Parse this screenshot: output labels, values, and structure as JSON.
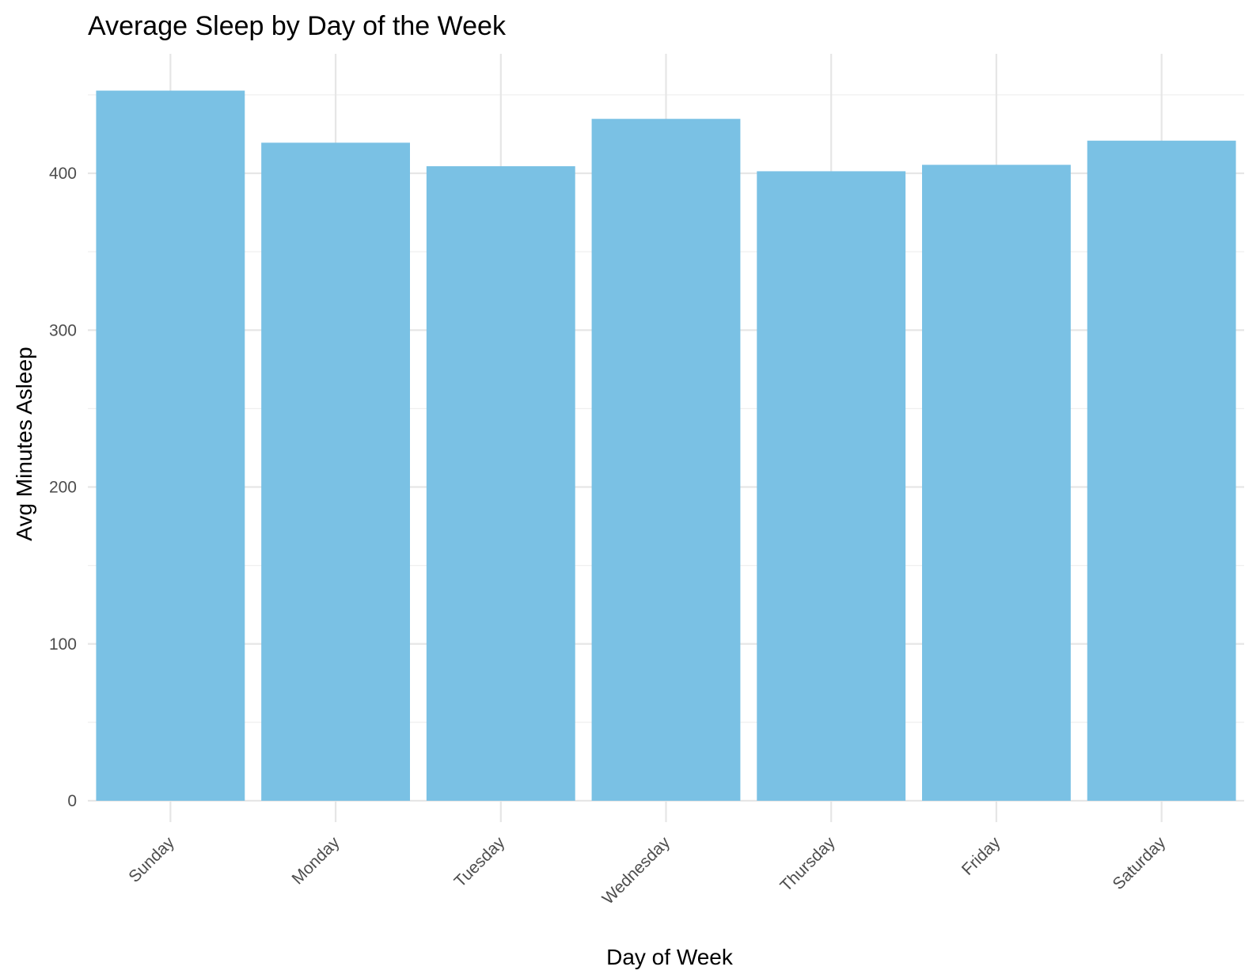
{
  "chart_data": {
    "type": "bar",
    "title": "Average Sleep by Day of the Week",
    "xlabel": "Day of Week",
    "ylabel": "Avg Minutes Asleep",
    "categories": [
      "Sunday",
      "Monday",
      "Tuesday",
      "Wednesday",
      "Thursday",
      "Friday",
      "Saturday"
    ],
    "values": [
      452.7,
      419.5,
      404.5,
      434.7,
      401.3,
      405.4,
      420.8
    ],
    "ylim": [
      0,
      450
    ],
    "yticks": [
      0,
      100,
      200,
      300,
      400
    ],
    "ytick_labels": [
      "0",
      "100",
      "200",
      "300",
      "400"
    ],
    "bar_color": "#7AC1E4",
    "grid": true,
    "legend": "none",
    "x_tick_rotation": "45deg"
  }
}
